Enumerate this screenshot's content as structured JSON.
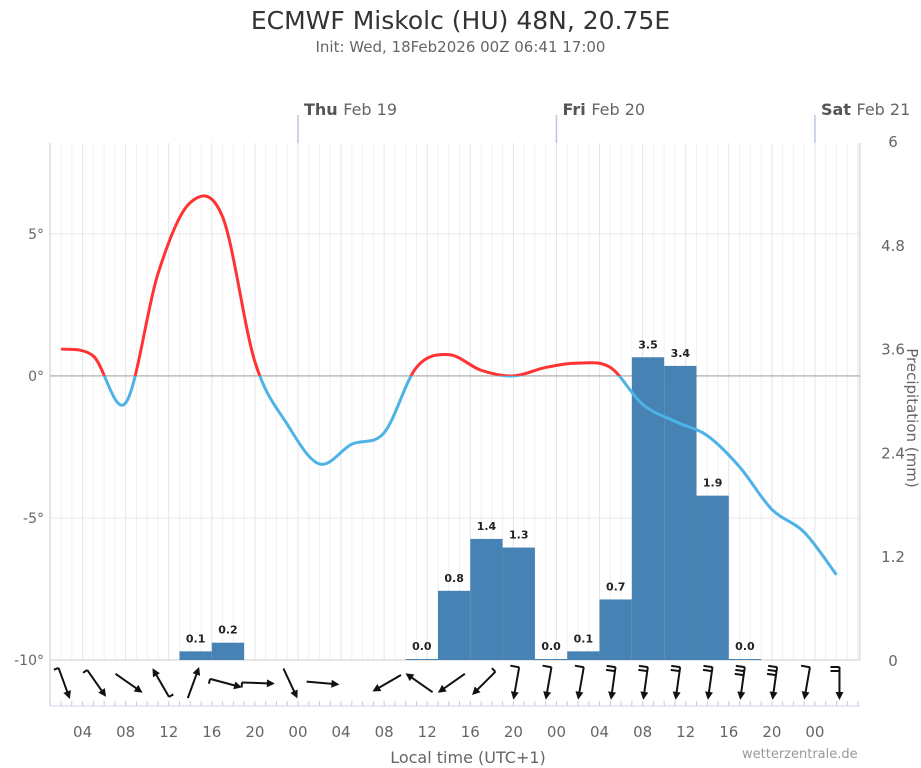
{
  "title": "ECMWF Miskolc (HU) 48N, 20.75E",
  "subtitle": "Init: Wed, 18Feb2026 00Z 06:41 17:00",
  "credit": "wetterzentrale.de",
  "colors": {
    "temp_above_zero": "#ff3333",
    "temp_below_zero": "#4db3e6",
    "precip_bars": "#4682b4",
    "day_separator": "#b8c8e0"
  },
  "chart_data": {
    "type": "line+bar",
    "xlabel": "Local time (UTC+1)",
    "ylabel_left": "",
    "ylabel_right": "Precipitation (mm)",
    "x_unit": "hours from Wed 00 local",
    "xlim": [
      1,
      76
    ],
    "ylim_left": [
      -10,
      8.2
    ],
    "ylim_right": [
      0,
      6
    ],
    "grid": true,
    "day_labels": [
      {
        "day": "Thu",
        "date": "Feb 19",
        "hour": 24
      },
      {
        "day": "Fri",
        "date": "Feb 20",
        "hour": 48
      },
      {
        "day": "Sat",
        "date": "Feb 21",
        "hour": 72
      }
    ],
    "x_ticks": [
      {
        "hour": 4,
        "label": "04"
      },
      {
        "hour": 8,
        "label": "08"
      },
      {
        "hour": 12,
        "label": "12"
      },
      {
        "hour": 16,
        "label": "16"
      },
      {
        "hour": 20,
        "label": "20"
      },
      {
        "hour": 24,
        "label": "00"
      },
      {
        "hour": 28,
        "label": "04"
      },
      {
        "hour": 32,
        "label": "08"
      },
      {
        "hour": 36,
        "label": "12"
      },
      {
        "hour": 40,
        "label": "16"
      },
      {
        "hour": 44,
        "label": "20"
      },
      {
        "hour": 48,
        "label": "00"
      },
      {
        "hour": 52,
        "label": "04"
      },
      {
        "hour": 56,
        "label": "08"
      },
      {
        "hour": 60,
        "label": "12"
      },
      {
        "hour": 64,
        "label": "16"
      },
      {
        "hour": 68,
        "label": "20"
      },
      {
        "hour": 72,
        "label": "00"
      }
    ],
    "y_ticks_left": [
      {
        "v": 5,
        "label": "5°"
      },
      {
        "v": 0,
        "label": "0°"
      },
      {
        "v": -5,
        "label": "-5°"
      },
      {
        "v": -10,
        "label": "-10°"
      }
    ],
    "y_ticks_right": [
      {
        "v": 6,
        "label": "6"
      },
      {
        "v": 4.8,
        "label": "4.8"
      },
      {
        "v": 3.6,
        "label": "3.6"
      },
      {
        "v": 2.4,
        "label": "2.4"
      },
      {
        "v": 1.2,
        "label": "1.2"
      },
      {
        "v": 0,
        "label": "0"
      }
    ],
    "temperature": {
      "hours": [
        2,
        5,
        8,
        11,
        14,
        17,
        20,
        23,
        26,
        29,
        32,
        35,
        38,
        41,
        44,
        47,
        50,
        53,
        56,
        59,
        62,
        65,
        68,
        71,
        74
      ],
      "values": [
        0.95,
        0.7,
        -0.95,
        3.6,
        6.1,
        5.6,
        0.5,
        -1.7,
        -3.1,
        -2.4,
        -2.0,
        0.3,
        0.75,
        0.2,
        0.0,
        0.3,
        0.45,
        0.3,
        -1.0,
        -1.6,
        -2.1,
        -3.2,
        -4.7,
        -5.5,
        -7.0
      ]
    },
    "precipitation": {
      "bin_start_hours": [
        13,
        16,
        34,
        37,
        40,
        43,
        46,
        49,
        52,
        55,
        58,
        61,
        64
      ],
      "bin_hours": 3,
      "values": [
        0.1,
        0.2,
        0.0,
        0.8,
        1.4,
        1.3,
        0.0,
        0.1,
        0.7,
        3.5,
        3.4,
        1.9,
        0.0
      ],
      "labels": [
        "0.1",
        "0.2",
        "0.0",
        "0.8",
        "1.4",
        "1.3",
        "0.0",
        "0.1",
        "0.7",
        "3.5",
        "3.4",
        "1.9",
        "0.0"
      ]
    },
    "wind": {
      "hours": [
        2,
        5,
        8,
        11,
        14,
        17,
        20,
        23,
        26,
        29,
        32,
        35,
        38,
        41,
        44,
        47,
        50,
        53,
        56,
        59,
        62,
        65,
        68,
        71,
        74
      ],
      "direction_to_deg": [
        160,
        145,
        125,
        330,
        20,
        105,
        92,
        155,
        95,
        null,
        240,
        305,
        235,
        225,
        190,
        190,
        190,
        188,
        188,
        188,
        188,
        188,
        188,
        190,
        180
      ],
      "barbs": [
        0.5,
        0.5,
        0,
        0.5,
        0,
        0.5,
        0.5,
        0,
        0,
        0,
        0,
        0,
        0,
        0.5,
        1,
        1,
        1,
        2,
        2,
        2,
        2,
        3,
        3,
        1,
        2
      ]
    }
  }
}
